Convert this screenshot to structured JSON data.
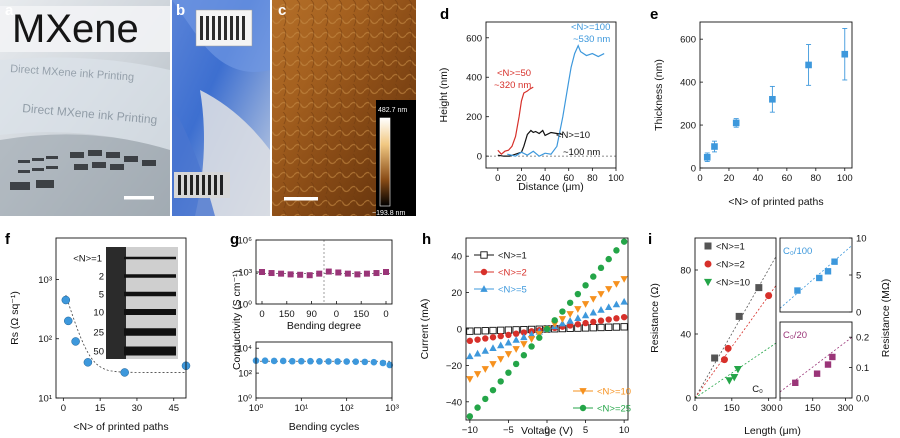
{
  "panels": {
    "a": {
      "letter": "a",
      "logo": "MXene",
      "film_text": "Direct MXene ink Printing"
    },
    "b": {
      "letter": "b"
    },
    "c": {
      "letter": "c",
      "scale_top": "482.7 nm",
      "scale_bottom": "−193.8 nm"
    },
    "d": {
      "letter": "d"
    },
    "e": {
      "letter": "e"
    },
    "f": {
      "letter": "f"
    },
    "g": {
      "letter": "g"
    },
    "h": {
      "letter": "h"
    },
    "i": {
      "letter": "i"
    }
  },
  "colors": {
    "blue": "#3d98dc",
    "red": "#d7302a",
    "black": "#111111",
    "purple": "#9a3578",
    "orange": "#f6911e",
    "green": "#24a548",
    "gray": "#555555"
  },
  "chart_data": [
    {
      "id": "d",
      "type": "line",
      "xlabel": "Distance (μm)",
      "ylabel": "Height (nm)",
      "xlim": [
        -10,
        100
      ],
      "ylim": [
        -60,
        680
      ],
      "xticks": [
        "0",
        "20",
        "40",
        "60",
        "80",
        "100"
      ],
      "yticks": [
        "0",
        "200",
        "400",
        "600"
      ],
      "series": [
        {
          "name": "<N>=10",
          "color": "black",
          "annotation": "~100 nm",
          "x": [
            0,
            5,
            10,
            15,
            20,
            22,
            25,
            28,
            30,
            32,
            35,
            38,
            40,
            45,
            50,
            55
          ],
          "y": [
            5,
            0,
            0,
            10,
            20,
            50,
            110,
            130,
            120,
            125,
            115,
            130,
            105,
            120,
            115,
            110
          ]
        },
        {
          "name": "<N>=50",
          "color": "red",
          "annotation": "~320 nm",
          "x": [
            0,
            3,
            6,
            9,
            12,
            15,
            18,
            20,
            22,
            25,
            27,
            30
          ],
          "y": [
            30,
            10,
            25,
            30,
            50,
            100,
            200,
            280,
            320,
            330,
            340,
            350
          ]
        },
        {
          "name": "<N>=100",
          "color": "blue",
          "annotation": "~530 nm",
          "x": [
            8,
            15,
            20,
            25,
            30,
            35,
            40,
            45,
            50,
            55,
            60,
            62,
            65,
            68,
            70,
            75,
            80,
            85,
            90
          ],
          "y": [
            10,
            0,
            20,
            5,
            25,
            0,
            15,
            10,
            50,
            200,
            380,
            450,
            520,
            560,
            530,
            510,
            520,
            505,
            520
          ]
        }
      ]
    },
    {
      "id": "e",
      "type": "scatter",
      "xlabel": "<N> of printed paths",
      "ylabel": "Thickness (nm)",
      "xlim": [
        0,
        105
      ],
      "ylim": [
        0,
        680
      ],
      "xticks": [
        "0",
        "20",
        "40",
        "60",
        "80",
        "100"
      ],
      "yticks": [
        "0",
        "200",
        "400",
        "600"
      ],
      "x": [
        5,
        10,
        25,
        50,
        75,
        100
      ],
      "y": [
        50,
        100,
        210,
        320,
        480,
        530
      ],
      "err": [
        20,
        25,
        20,
        60,
        95,
        120
      ]
    },
    {
      "id": "f",
      "type": "scatter",
      "xlabel": "<N> of printed paths",
      "ylabel": "Rs (Ω sq⁻¹)",
      "xlim": [
        -3,
        50
      ],
      "ylim_log10": [
        1,
        3.7
      ],
      "ylog": true,
      "xticks": [
        "0",
        "15",
        "30",
        "45"
      ],
      "yticks": [
        "10¹",
        "10²",
        "10³"
      ],
      "x": [
        1,
        2,
        5,
        10,
        25,
        50
      ],
      "y": [
        450,
        200,
        90,
        40,
        27,
        35
      ],
      "inset_labels": [
        "<N>=1",
        "2",
        "5",
        "10",
        "25",
        "50"
      ]
    },
    {
      "id": "g_top",
      "type": "scatter",
      "xlabel": "Bending degree",
      "ylabel": "Conductivity (S cm⁻¹)",
      "xticks": [
        "0",
        "150",
        "90",
        "0",
        "150",
        "0"
      ],
      "yticks": [
        "10⁰",
        "10³",
        "10⁶"
      ],
      "ylim_log10": [
        0,
        6
      ],
      "ylog": true,
      "y": [
        1000,
        800,
        700,
        600,
        550,
        500,
        700,
        1100,
        900,
        700,
        600,
        700,
        800,
        1000
      ]
    },
    {
      "id": "g_bottom",
      "type": "scatter",
      "xlabel": "Bending cycles",
      "xticks": [
        "10⁰",
        "10¹",
        "10²",
        "10³"
      ],
      "yticks": [
        "10⁰",
        "10²",
        "10⁴"
      ],
      "xlim_log10": [
        0,
        3
      ],
      "ylim_log10": [
        0,
        4.5
      ],
      "xlog": true,
      "ylog": true,
      "x_log10": [
        0,
        0.2,
        0.4,
        0.6,
        0.8,
        1,
        1.2,
        1.4,
        1.6,
        1.8,
        2,
        2.2,
        2.4,
        2.6,
        2.8,
        2.95
      ],
      "y": [
        1000,
        1000,
        950,
        950,
        900,
        900,
        900,
        880,
        870,
        860,
        850,
        830,
        800,
        750,
        650,
        450
      ]
    },
    {
      "id": "h",
      "type": "scatter",
      "xlabel": "Voltage (V)",
      "ylabel": "Current (mA)",
      "xlim": [
        -10.5,
        10.5
      ],
      "ylim": [
        -50,
        50
      ],
      "xticks": [
        "−10",
        "−5",
        "0",
        "5",
        "10"
      ],
      "yticks": [
        "−40",
        "−20",
        "0",
        "20",
        "40"
      ],
      "series": [
        {
          "name": "<N>=1",
          "color": "black",
          "marker": "square-open",
          "slope": 0.12
        },
        {
          "name": "<N>=2",
          "color": "red",
          "marker": "circle",
          "slope": 0.65
        },
        {
          "name": "<N>=5",
          "color": "blue",
          "marker": "triangle-up",
          "slope": 1.5
        },
        {
          "name": "<N>=10",
          "color": "orange",
          "marker": "triangle-down",
          "slope": 2.75
        },
        {
          "name": "<N>=25",
          "color": "green",
          "marker": "circle",
          "slope": 4.8
        }
      ]
    },
    {
      "id": "i",
      "type": "scatter",
      "xlabel": "Length (μm)",
      "ylabel": "Resistance (Ω)",
      "xlim": [
        0,
        330
      ],
      "ylim": [
        0,
        100
      ],
      "xticks": [
        "0",
        "150",
        "300"
      ],
      "yticks": [
        "0",
        "40",
        "80"
      ],
      "corner_label": "C₀",
      "series": [
        {
          "name": "<N>=1",
          "color": "gray",
          "marker": "square",
          "x": [
            80,
            180,
            260
          ],
          "y": [
            25,
            51,
            69
          ]
        },
        {
          "name": "<N>=2",
          "color": "red",
          "marker": "circle",
          "x": [
            120,
            135,
            300
          ],
          "y": [
            24,
            31,
            64
          ]
        },
        {
          "name": "<N>=10",
          "color": "green",
          "marker": "triangle-down",
          "x": [
            140,
            160,
            175
          ],
          "y": [
            11,
            13,
            18
          ]
        }
      ]
    },
    {
      "id": "i_right_top",
      "type": "scatter",
      "ylabel": "Resistance (MΩ)",
      "label": "C₀/100",
      "xlim": [
        0,
        330
      ],
      "ylim": [
        0,
        10
      ],
      "yticks": [
        "0",
        "5",
        "10"
      ],
      "x": [
        80,
        180,
        220,
        250
      ],
      "y": [
        2.9,
        4.6,
        5.5,
        6.8
      ]
    },
    {
      "id": "i_right_bottom",
      "type": "scatter",
      "label": "C₀/20",
      "xlim": [
        0,
        330
      ],
      "ylim": [
        0,
        0.25
      ],
      "xticks": [
        "0",
        "150",
        "300"
      ],
      "yticks": [
        "0.0",
        "0.1",
        "0.2"
      ],
      "x": [
        70,
        170,
        220,
        240
      ],
      "y": [
        0.05,
        0.08,
        0.11,
        0.135
      ]
    }
  ]
}
